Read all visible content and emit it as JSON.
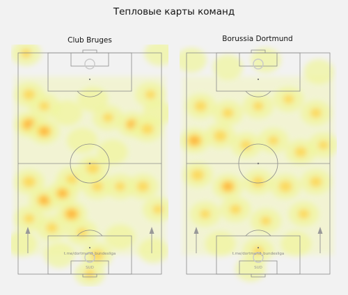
{
  "figure": {
    "title": "Тепловые карты команд"
  },
  "chart_data": [
    {
      "type": "heatmap",
      "title": "Club Bruges",
      "watermark": "t.me/dortmund_bundesliga",
      "corner_label": "SUD",
      "colors": {
        "low": "#f0f59a",
        "mid": "#ffd24a",
        "high": "#ff9f2e"
      },
      "attack_direction": "up",
      "hotspots": [
        {
          "x": 0.08,
          "y": 0.02,
          "i": 0.6
        },
        {
          "x": 0.96,
          "y": 0.02,
          "i": 0.55
        },
        {
          "x": 0.1,
          "y": 0.2,
          "i": 0.7
        },
        {
          "x": 0.2,
          "y": 0.25,
          "i": 0.6
        },
        {
          "x": 0.1,
          "y": 0.33,
          "i": 0.95
        },
        {
          "x": 0.2,
          "y": 0.36,
          "i": 0.85
        },
        {
          "x": 0.35,
          "y": 0.28,
          "i": 0.55
        },
        {
          "x": 0.52,
          "y": 0.22,
          "i": 0.5
        },
        {
          "x": 0.62,
          "y": 0.3,
          "i": 0.6
        },
        {
          "x": 0.78,
          "y": 0.33,
          "i": 0.8
        },
        {
          "x": 0.88,
          "y": 0.35,
          "i": 0.7
        },
        {
          "x": 0.95,
          "y": 0.28,
          "i": 0.55
        },
        {
          "x": 0.9,
          "y": 0.2,
          "i": 0.6
        },
        {
          "x": 0.45,
          "y": 0.4,
          "i": 0.5
        },
        {
          "x": 0.52,
          "y": 0.52,
          "i": 0.75
        },
        {
          "x": 0.38,
          "y": 0.57,
          "i": 0.65
        },
        {
          "x": 0.1,
          "y": 0.58,
          "i": 0.75
        },
        {
          "x": 0.2,
          "y": 0.66,
          "i": 0.85
        },
        {
          "x": 0.32,
          "y": 0.63,
          "i": 0.8
        },
        {
          "x": 0.38,
          "y": 0.72,
          "i": 0.9
        },
        {
          "x": 0.55,
          "y": 0.6,
          "i": 0.65
        },
        {
          "x": 0.7,
          "y": 0.6,
          "i": 0.6
        },
        {
          "x": 0.85,
          "y": 0.6,
          "i": 0.7
        },
        {
          "x": 0.95,
          "y": 0.7,
          "i": 0.6
        },
        {
          "x": 0.1,
          "y": 0.74,
          "i": 0.6
        },
        {
          "x": 0.25,
          "y": 0.78,
          "i": 0.65
        },
        {
          "x": 0.45,
          "y": 0.8,
          "i": 0.6
        },
        {
          "x": 0.55,
          "y": 0.9,
          "i": 0.75
        },
        {
          "x": 0.5,
          "y": 0.98,
          "i": 0.6
        },
        {
          "x": 0.7,
          "y": 0.82,
          "i": 0.5
        },
        {
          "x": 0.3,
          "y": 0.9,
          "i": 0.5
        },
        {
          "x": 0.05,
          "y": 0.85,
          "i": 0.45
        },
        {
          "x": 0.92,
          "y": 0.88,
          "i": 0.45
        },
        {
          "x": 0.65,
          "y": 0.45,
          "i": 0.45
        }
      ]
    },
    {
      "type": "heatmap",
      "title": "Borussia Dortmund",
      "watermark": "t.me/dortmund_bundesliga",
      "corner_label": "SUD",
      "colors": {
        "low": "#f0f59a",
        "mid": "#ffd24a",
        "high": "#ff9f2e"
      },
      "attack_direction": "up",
      "hotspots": [
        {
          "x": 0.06,
          "y": 0.05,
          "i": 0.55
        },
        {
          "x": 0.3,
          "y": 0.08,
          "i": 0.5
        },
        {
          "x": 0.55,
          "y": 0.05,
          "i": 0.45
        },
        {
          "x": 0.9,
          "y": 0.1,
          "i": 0.5
        },
        {
          "x": 0.12,
          "y": 0.25,
          "i": 0.7
        },
        {
          "x": 0.3,
          "y": 0.28,
          "i": 0.65
        },
        {
          "x": 0.5,
          "y": 0.25,
          "i": 0.6
        },
        {
          "x": 0.7,
          "y": 0.22,
          "i": 0.6
        },
        {
          "x": 0.88,
          "y": 0.28,
          "i": 0.65
        },
        {
          "x": 0.08,
          "y": 0.4,
          "i": 0.9
        },
        {
          "x": 0.25,
          "y": 0.38,
          "i": 0.75
        },
        {
          "x": 0.42,
          "y": 0.42,
          "i": 0.65
        },
        {
          "x": 0.6,
          "y": 0.4,
          "i": 0.6
        },
        {
          "x": 0.78,
          "y": 0.45,
          "i": 0.7
        },
        {
          "x": 0.93,
          "y": 0.42,
          "i": 0.6
        },
        {
          "x": 0.1,
          "y": 0.55,
          "i": 0.75
        },
        {
          "x": 0.3,
          "y": 0.6,
          "i": 0.85
        },
        {
          "x": 0.5,
          "y": 0.58,
          "i": 0.7
        },
        {
          "x": 0.68,
          "y": 0.6,
          "i": 0.75
        },
        {
          "x": 0.88,
          "y": 0.58,
          "i": 0.7
        },
        {
          "x": 0.15,
          "y": 0.72,
          "i": 0.6
        },
        {
          "x": 0.35,
          "y": 0.7,
          "i": 0.65
        },
        {
          "x": 0.55,
          "y": 0.75,
          "i": 0.6
        },
        {
          "x": 0.8,
          "y": 0.72,
          "i": 0.65
        },
        {
          "x": 0.25,
          "y": 0.85,
          "i": 0.5
        },
        {
          "x": 0.5,
          "y": 0.88,
          "i": 0.6
        },
        {
          "x": 0.75,
          "y": 0.85,
          "i": 0.5
        },
        {
          "x": 0.45,
          "y": 0.96,
          "i": 0.45
        }
      ]
    }
  ]
}
